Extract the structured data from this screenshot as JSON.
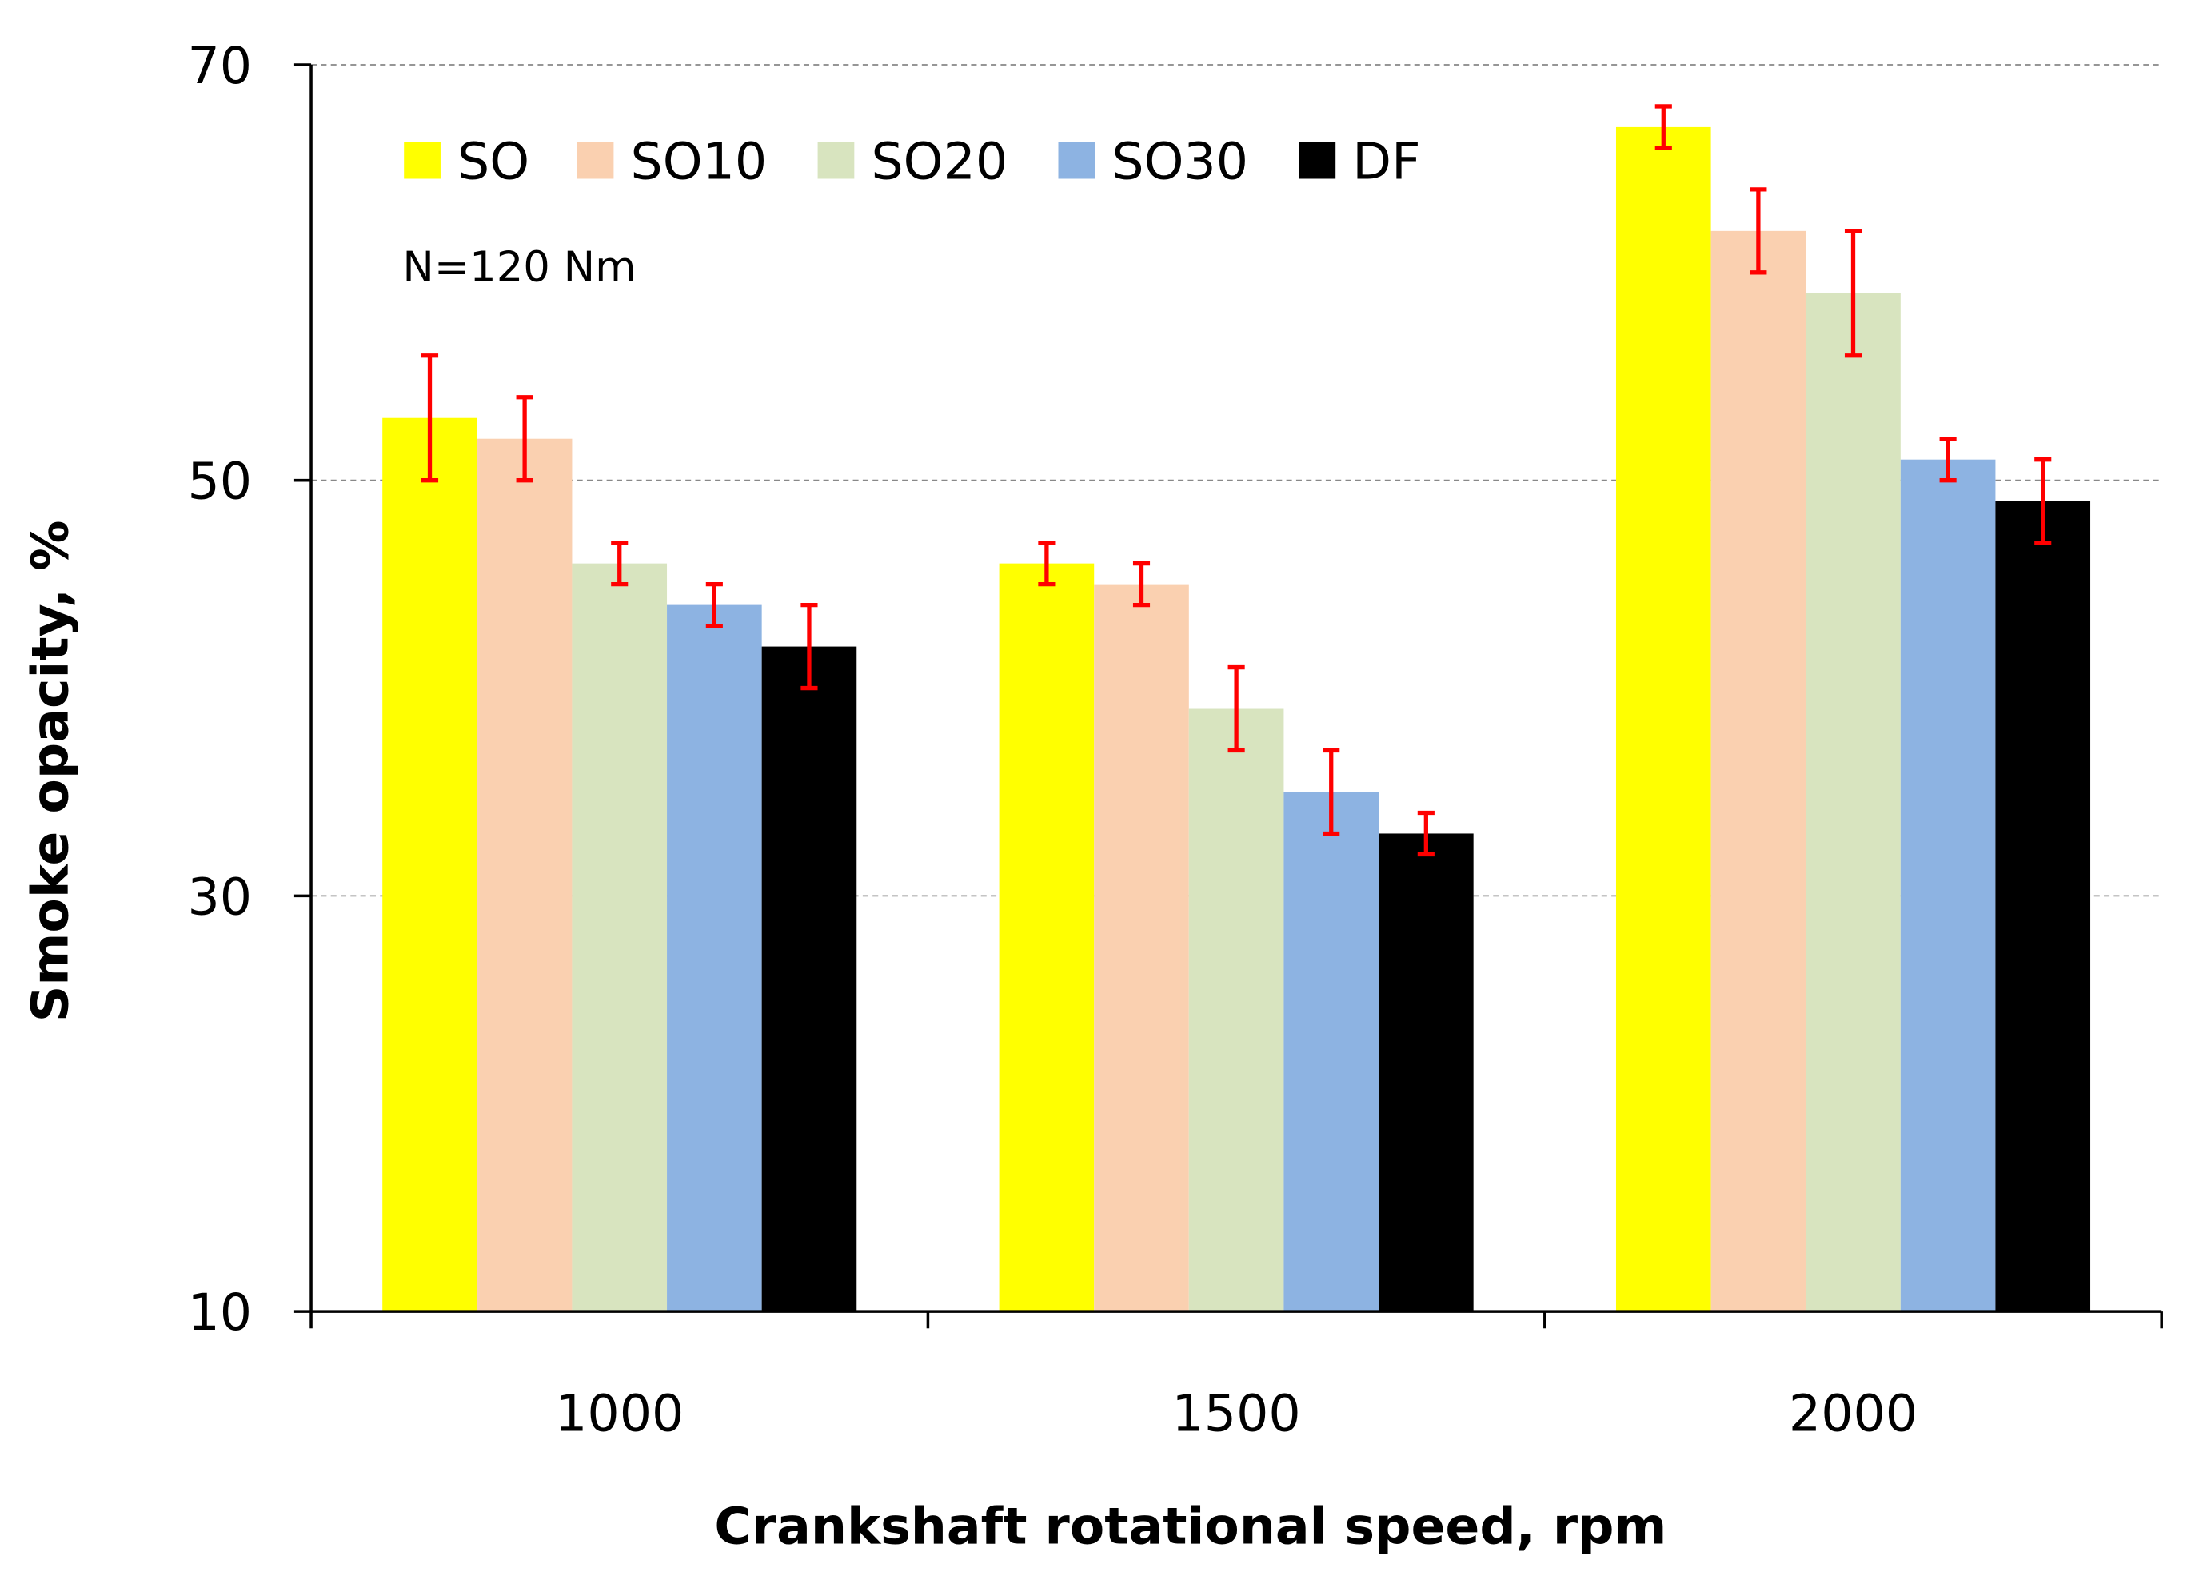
{
  "chart_data": {
    "type": "bar",
    "title": "",
    "annotation": "N=120 Nm",
    "xlabel": "Crankshaft rotational speed, rpm",
    "ylabel": "Smoke opacity, %",
    "categories": [
      "1000",
      "1500",
      "2000"
    ],
    "ylim": [
      10,
      70
    ],
    "yticks": [
      10,
      30,
      50,
      70
    ],
    "grid": true,
    "legend_position": "top-left",
    "series": [
      {
        "name": "SO",
        "color": "#ffff00",
        "values": [
          53,
          46,
          67
        ],
        "errors": [
          3,
          1,
          1
        ]
      },
      {
        "name": "SO10",
        "color": "#fad0b0",
        "values": [
          52,
          45,
          62
        ],
        "errors": [
          2,
          1,
          2
        ]
      },
      {
        "name": "SO20",
        "color": "#d8e4bf",
        "values": [
          46,
          39,
          59
        ],
        "errors": [
          1,
          2,
          3
        ]
      },
      {
        "name": "SO30",
        "color": "#8db3e2",
        "values": [
          44,
          35,
          51
        ],
        "errors": [
          1,
          2,
          1
        ]
      },
      {
        "name": "DF",
        "color": "#000000",
        "values": [
          42,
          33,
          49
        ],
        "errors": [
          2,
          1,
          2
        ]
      }
    ],
    "error_bar_color": "#ff0000"
  }
}
